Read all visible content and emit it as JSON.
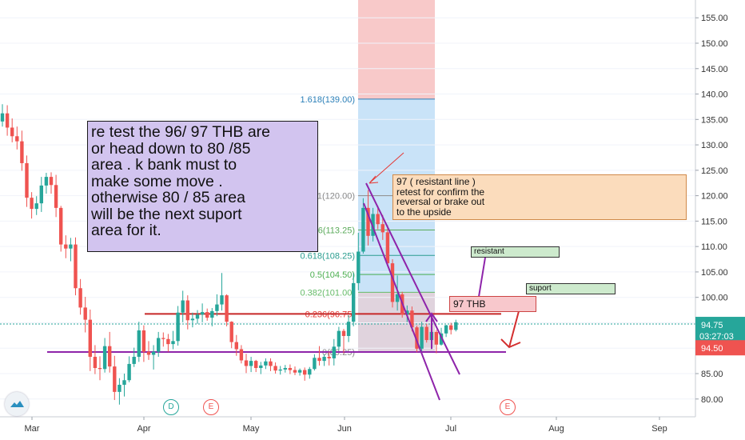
{
  "chart_data": {
    "type": "candlestick",
    "y_axis": {
      "ticks": [
        155,
        150,
        145,
        140,
        135,
        130,
        125,
        120,
        115,
        110,
        105,
        100,
        95,
        90,
        85,
        80
      ],
      "labels": [
        "155.00",
        "150.00",
        "145.00",
        "140.00",
        "135.00",
        "130.00",
        "125.00",
        "120.00",
        "115.00",
        "110.00",
        "105.00",
        "100.00",
        "95.00",
        "90.00",
        "85.00",
        "80.00"
      ],
      "range": [
        76.5,
        158.5
      ]
    },
    "x_axis": {
      "labels": [
        "Mar",
        "Apr",
        "May",
        "Jun",
        "Jul",
        "Aug",
        "Sep"
      ]
    },
    "price_labels": {
      "last": "94.75",
      "countdown": "03:27:03",
      "bid": "94.50"
    },
    "last_price": 94.75,
    "fib_levels": [
      {
        "label": "1.618(139.00)",
        "value": 139,
        "color": "#2a7fb8"
      },
      {
        "label": "1(120.00)",
        "value": 120,
        "color": "#888888"
      },
      {
        "label": "0.786(113.25)",
        "value": 113.25,
        "color": "#5aaa5a"
      },
      {
        "label": "0.618(108.25)",
        "value": 108.25,
        "color": "#2a9d8f"
      },
      {
        "label": "0.5(104.50)",
        "value": 104.5,
        "color": "#4caf50"
      },
      {
        "label": "0.382(101.00)",
        "value": 101,
        "color": "#66bb6a"
      },
      {
        "label": "0.236(96.75)",
        "value": 96.75,
        "color": "#e53935"
      },
      {
        "label": "0(89.25)",
        "value": 89.25,
        "color": "#888888"
      }
    ],
    "horizontal_lines": [
      {
        "name": "resistance-line",
        "value": 96.75,
        "color": "#c62828"
      },
      {
        "name": "support-line",
        "value": 89.25,
        "color": "#8e24aa"
      }
    ],
    "candles": [
      [
        134.6,
        138.0,
        133.6,
        136.2
      ],
      [
        136.2,
        137.8,
        131.8,
        133.4
      ],
      [
        133.4,
        135.2,
        130.5,
        131.7
      ],
      [
        131.7,
        133.6,
        129.1,
        130.7
      ],
      [
        130.7,
        132.8,
        124.9,
        126.4
      ],
      [
        126.4,
        127.9,
        117.8,
        119.6
      ],
      [
        119.6,
        120.7,
        115.5,
        117.4
      ],
      [
        117.4,
        119.9,
        116.2,
        118.5
      ],
      [
        118.5,
        123.7,
        116.8,
        122.0
      ],
      [
        122.0,
        124.5,
        120.4,
        123.7
      ],
      [
        123.7,
        124.6,
        120.4,
        122.1
      ],
      [
        122.1,
        124.1,
        115.8,
        117.6
      ],
      [
        117.6,
        118.0,
        109.0,
        110.4
      ],
      [
        110.4,
        112.2,
        107.7,
        109.6
      ],
      [
        109.6,
        111.7,
        107.1,
        110.4
      ],
      [
        110.4,
        111.8,
        100.4,
        101.8
      ],
      [
        101.8,
        103.6,
        96.6,
        98.0
      ],
      [
        98.0,
        100.1,
        93.1,
        95.6
      ],
      [
        95.6,
        97.6,
        85.5,
        88.3
      ],
      [
        88.3,
        90.6,
        84.9,
        86.1
      ],
      [
        86.1,
        88.4,
        83.7,
        85.9
      ],
      [
        85.9,
        92.0,
        85.2,
        90.4
      ],
      [
        90.4,
        93.2,
        85.2,
        86.4
      ],
      [
        86.4,
        88.5,
        79.8,
        81.4
      ],
      [
        81.4,
        84.1,
        78.9,
        82.8
      ],
      [
        82.8,
        85.0,
        80.5,
        83.7
      ],
      [
        83.7,
        88.4,
        83.3,
        86.9
      ],
      [
        86.9,
        90.1,
        86.3,
        88.3
      ],
      [
        88.3,
        95.2,
        87.3,
        93.5
      ],
      [
        93.5,
        94.5,
        87.3,
        89.3
      ],
      [
        89.3,
        91.4,
        87.7,
        88.7
      ],
      [
        88.7,
        90.6,
        85.8,
        89.3
      ],
      [
        89.3,
        93.2,
        88.3,
        92.0
      ],
      [
        92.0,
        93.1,
        90.3,
        91.8
      ],
      [
        91.8,
        92.8,
        89.3,
        90.8
      ],
      [
        90.8,
        93.4,
        89.8,
        91.4
      ],
      [
        91.4,
        98.3,
        90.5,
        97.0
      ],
      [
        97.0,
        101.3,
        95.1,
        99.4
      ],
      [
        99.4,
        100.4,
        93.7,
        95.5
      ],
      [
        95.5,
        97.0,
        94.1,
        95.8
      ],
      [
        95.8,
        97.5,
        94.8,
        96.6
      ],
      [
        96.6,
        98.8,
        95.1,
        97.1
      ],
      [
        97.1,
        97.8,
        95.4,
        96.0
      ],
      [
        96.0,
        97.9,
        94.3,
        97.3
      ],
      [
        97.3,
        100.6,
        96.3,
        98.6
      ],
      [
        98.6,
        104.8,
        97.4,
        100.4
      ],
      [
        100.4,
        100.6,
        94.3,
        95.2
      ],
      [
        95.2,
        95.3,
        90.0,
        91.2
      ],
      [
        91.2,
        92.6,
        88.5,
        89.8
      ],
      [
        89.8,
        90.6,
        87.0,
        87.6
      ],
      [
        87.6,
        88.9,
        85.1,
        86.5
      ],
      [
        86.5,
        88.3,
        85.3,
        87.5
      ],
      [
        87.5,
        87.7,
        85.3,
        86.1
      ],
      [
        86.1,
        87.3,
        84.9,
        86.6
      ],
      [
        86.6,
        88.0,
        85.9,
        87.4
      ],
      [
        87.4,
        88.0,
        85.5,
        86.5
      ],
      [
        86.5,
        87.2,
        85.0,
        85.6
      ],
      [
        85.6,
        86.5,
        84.8,
        85.8
      ],
      [
        85.8,
        86.7,
        85.2,
        86.1
      ],
      [
        86.1,
        86.8,
        84.9,
        85.7
      ],
      [
        85.7,
        86.4,
        84.7,
        85.2
      ],
      [
        85.2,
        86.0,
        84.6,
        85.7
      ],
      [
        85.7,
        86.2,
        83.6,
        84.8
      ],
      [
        84.8,
        86.3,
        84.0,
        85.9
      ],
      [
        85.9,
        88.8,
        85.6,
        88.1
      ],
      [
        88.1,
        90.4,
        86.6,
        87.5
      ],
      [
        87.5,
        88.8,
        86.5,
        88.3
      ],
      [
        88.3,
        89.3,
        86.6,
        88.0
      ],
      [
        88.0,
        91.8,
        86.6,
        90.3
      ],
      [
        90.3,
        94.2,
        89.6,
        93.4
      ],
      [
        93.4,
        93.8,
        89.0,
        92.4
      ],
      [
        92.4,
        96.5,
        91.2,
        95.2
      ],
      [
        95.2,
        104.8,
        94.3,
        102.8
      ],
      [
        102.8,
        112.7,
        101.4,
        109.0
      ],
      [
        109.0,
        119.5,
        108.6,
        117.6
      ],
      [
        117.6,
        121.1,
        110.2,
        112.1
      ],
      [
        112.1,
        117.6,
        111.0,
        116.4
      ],
      [
        116.4,
        118.0,
        113.4,
        114.4
      ],
      [
        114.4,
        116.2,
        111.3,
        112.8
      ],
      [
        112.8,
        114.2,
        106.1,
        106.7
      ],
      [
        106.7,
        107.5,
        98.0,
        99.1
      ],
      [
        99.1,
        104.3,
        97.4,
        100.6
      ],
      [
        100.6,
        101.1,
        96.0,
        96.6
      ],
      [
        96.6,
        98.4,
        95.1,
        97.4
      ],
      [
        97.4,
        98.2,
        93.3,
        94.1
      ],
      [
        94.1,
        94.4,
        89.2,
        89.9
      ],
      [
        89.9,
        95.2,
        89.4,
        94.2
      ],
      [
        94.2,
        94.8,
        91.1,
        91.6
      ],
      [
        91.6,
        93.7,
        89.8,
        93.2
      ],
      [
        93.2,
        93.6,
        89.0,
        90.7
      ],
      [
        90.7,
        94.0,
        90.5,
        92.9
      ],
      [
        92.9,
        94.6,
        92.2,
        94.5
      ],
      [
        94.5,
        95.0,
        92.7,
        93.6
      ],
      [
        93.6,
        95.6,
        93.3,
        95.1
      ]
    ]
  },
  "annotations": {
    "main_note": "re test the 96/ 97 THB are\nor head down to 80 /85\narea . k bank must to\nmake some move .\notherwise 80 / 85  area\nwill be the next suport\narea for it.",
    "resistance_note": "97 ( resistant line )\nretest for confirm the\nreversal or brake out\nto the upside",
    "resistant_label": "resistant",
    "support_label": "suport",
    "price_tag": "97 THB"
  },
  "events": {
    "d": "D",
    "e": "E"
  },
  "colors": {
    "up": "#26a69a",
    "down": "#ef5350",
    "fib_top": "#f8c9c9",
    "fib_zone": "#c9e3f8",
    "purple": "#8e24aa"
  }
}
